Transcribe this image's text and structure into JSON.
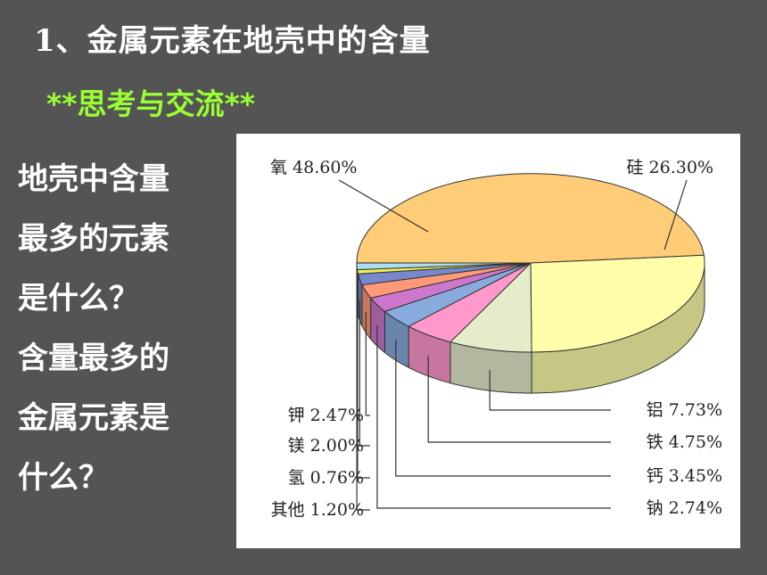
{
  "title": "1、金属元素在地壳中的含量",
  "subtitle": "**思考与交流**",
  "question": {
    "lines": [
      "地壳中含量",
      "最多的元素",
      "是什么？",
      "含量最多的",
      "金属元素是",
      "什么？"
    ]
  },
  "chart_data": {
    "type": "pie",
    "title": "",
    "unit": "%",
    "slices": [
      {
        "label": "氧",
        "value": 48.6,
        "text": "氧 48.60%",
        "color": "#ffcc77"
      },
      {
        "label": "硅",
        "value": 26.3,
        "text": "硅 26.30%",
        "color": "#ffffaa"
      },
      {
        "label": "铝",
        "value": 7.73,
        "text": "铝 7.73%",
        "color": "#e4ecca"
      },
      {
        "label": "铁",
        "value": 4.75,
        "text": "铁 4.75%",
        "color": "#ff99cc"
      },
      {
        "label": "钙",
        "value": 3.45,
        "text": "钙 3.45%",
        "color": "#88aadd"
      },
      {
        "label": "钠",
        "value": 2.74,
        "text": "钠 2.74%",
        "color": "#cc77cc"
      },
      {
        "label": "钾",
        "value": 2.47,
        "text": "钾 2.47%",
        "color": "#ff9977"
      },
      {
        "label": "镁",
        "value": 2.0,
        "text": "镁 2.00%",
        "color": "#7788cc"
      },
      {
        "label": "氢",
        "value": 0.76,
        "text": "氢 0.76%",
        "color": "#eeee55"
      },
      {
        "label": "其他",
        "value": 1.2,
        "text": "其他 1.20%",
        "color": "#aaddee"
      }
    ]
  }
}
